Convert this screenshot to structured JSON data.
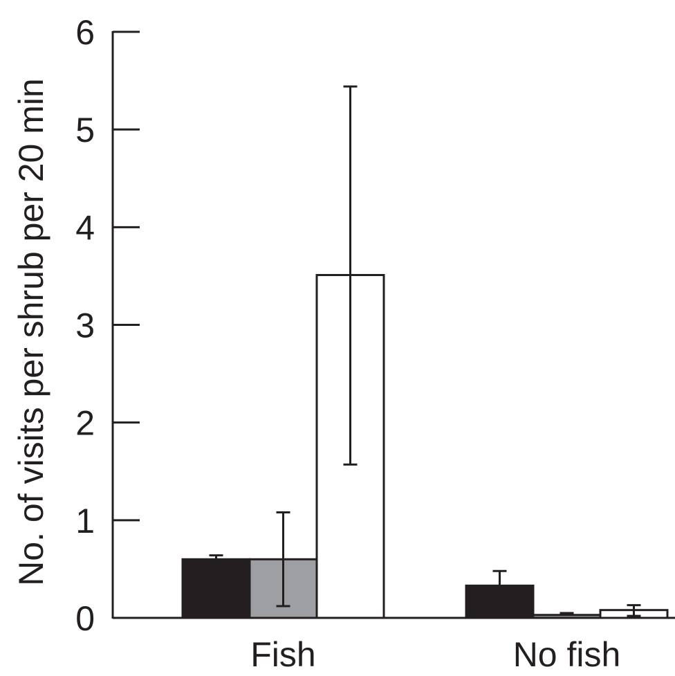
{
  "chart_data": {
    "type": "bar",
    "title": "",
    "xlabel": "",
    "ylabel": "No. of visits per shrub per 20 min",
    "ylim": [
      0,
      6
    ],
    "yticks": [
      0,
      1,
      2,
      3,
      4,
      5,
      6
    ],
    "grid": false,
    "legend": "none",
    "categories": [
      "Fish",
      "No fish"
    ],
    "series": [
      {
        "color": "#231f20",
        "values": [
          0.6,
          0.33
        ],
        "err_high": [
          0.64,
          0.48
        ],
        "err_low": [
          0.6,
          0.33
        ]
      },
      {
        "color": "#9d9fa2",
        "values": [
          0.6,
          0.03
        ],
        "err_high": [
          1.08,
          0.05
        ],
        "err_low": [
          0.12,
          0.03
        ]
      },
      {
        "color": "#ffffff",
        "values": [
          3.51,
          0.08
        ],
        "err_high": [
          5.44,
          0.13
        ],
        "err_low": [
          1.57,
          0.02
        ]
      }
    ]
  }
}
